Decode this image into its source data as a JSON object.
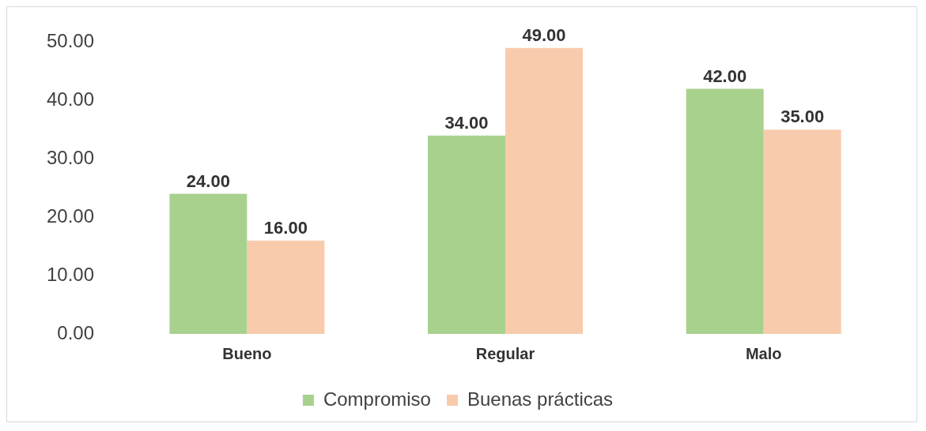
{
  "chart_data": {
    "type": "bar",
    "categories": [
      "Bueno",
      "Regular",
      "Malo"
    ],
    "series": [
      {
        "name": "Compromiso",
        "color": "#a9d18e",
        "values": [
          24,
          34,
          42
        ],
        "value_labels": [
          "24.00",
          "34.00",
          "42.00"
        ]
      },
      {
        "name": "Buenas prácticas",
        "color": "#f8cbad",
        "values": [
          16,
          49,
          35
        ],
        "value_labels": [
          "16.00",
          "49.00",
          "35.00"
        ]
      }
    ],
    "ylim": [
      0,
      50
    ],
    "yticks": [
      {
        "value": 0,
        "label": "0.00"
      },
      {
        "value": 10,
        "label": "10.00"
      },
      {
        "value": 20,
        "label": "20.00"
      },
      {
        "value": 30,
        "label": "30.00"
      },
      {
        "value": 40,
        "label": "40.00"
      },
      {
        "value": 50,
        "label": "50.00"
      }
    ],
    "grid": false,
    "legend": "bottom"
  }
}
